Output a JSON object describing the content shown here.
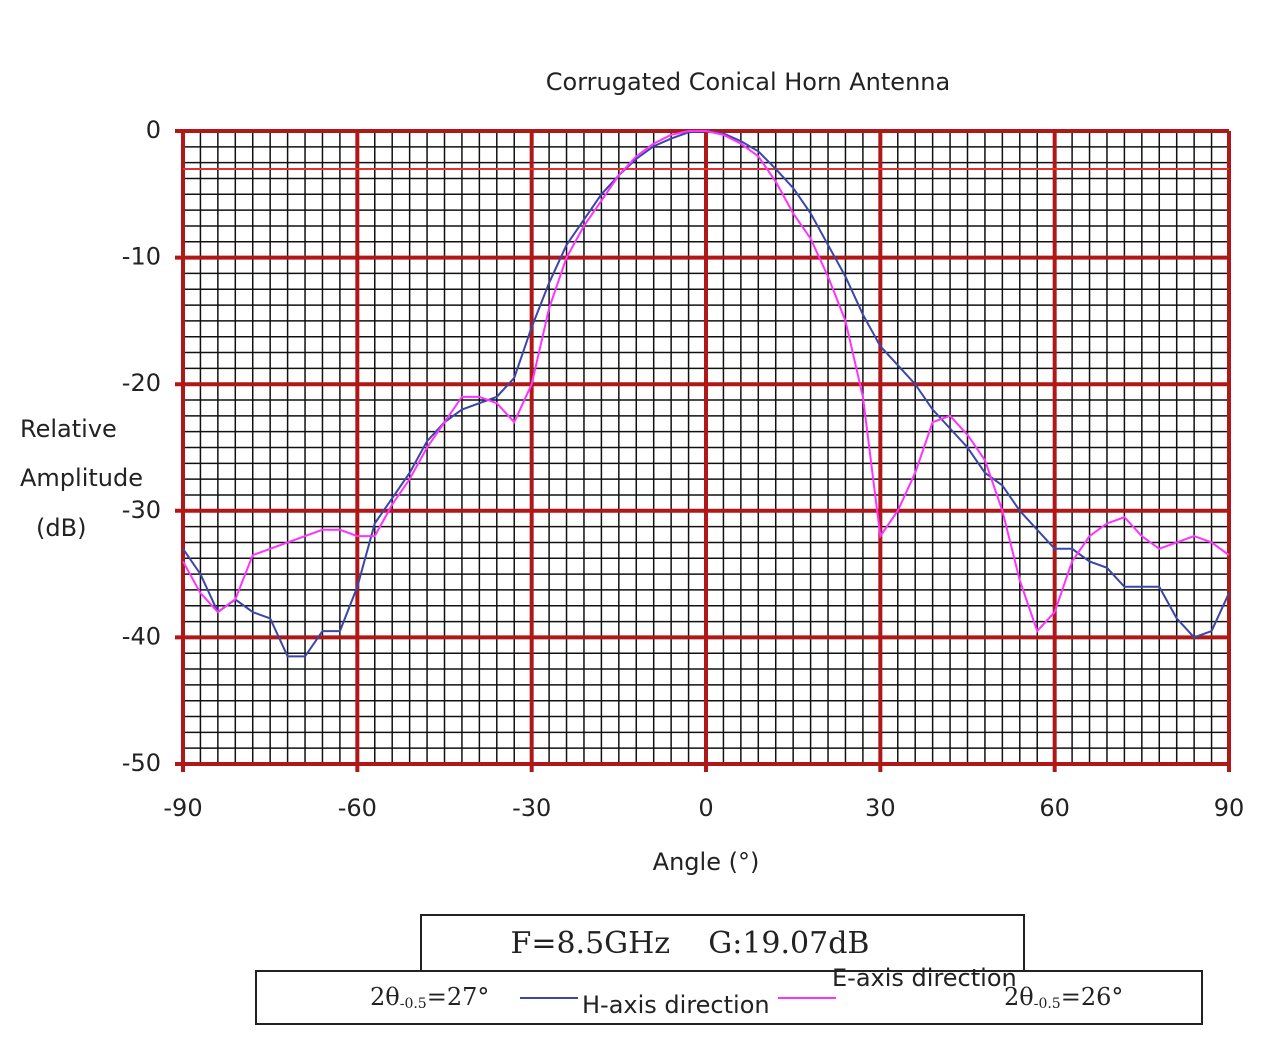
{
  "chart_data": {
    "type": "line",
    "title": "Corrugated Conical Horn Antenna",
    "xlabel": "Angle (°)",
    "ylabel": [
      "Relative",
      "Amplitude",
      "(dB)"
    ],
    "x": [
      -90,
      -87,
      -84,
      -81,
      -78,
      -75,
      -72,
      -69,
      -66,
      -63,
      -60,
      -57,
      -54,
      -51,
      -48,
      -45,
      -42,
      -39,
      -36,
      -33,
      -30,
      -27,
      -24,
      -21,
      -18,
      -15,
      -12,
      -9,
      -6,
      -3,
      0,
      3,
      6,
      9,
      12,
      15,
      18,
      21,
      24,
      27,
      30,
      33,
      36,
      39,
      42,
      45,
      48,
      51,
      54,
      57,
      60,
      63,
      66,
      69,
      72,
      75,
      78,
      81,
      84,
      87,
      90
    ],
    "series": [
      {
        "name": "H-axis direction",
        "color": "#3a47a8",
        "values": [
          -33,
          -35,
          -38,
          -37,
          -38,
          -38.5,
          -41.5,
          -41.5,
          -39.5,
          -39.5,
          -36,
          -31,
          -29,
          -27,
          -24.5,
          -23,
          -22,
          -21.5,
          -21,
          -19.5,
          -15.5,
          -12,
          -9,
          -7,
          -5,
          -3.5,
          -2.2,
          -1.2,
          -0.6,
          -0.1,
          0,
          -0.2,
          -0.8,
          -1.6,
          -3,
          -4.5,
          -6.5,
          -9,
          -11.5,
          -14.5,
          -17,
          -18.5,
          -20,
          -22,
          -23.5,
          -25,
          -27,
          -28,
          -30,
          -31.5,
          -33,
          -33,
          -34,
          -34.5,
          -36,
          -36,
          -36,
          -38.5,
          -40,
          -39.5,
          -36.5
        ]
      },
      {
        "name": "E-axis direction",
        "color": "#ff33ff",
        "values": [
          -34,
          -36.5,
          -38,
          -37,
          -33.5,
          -33,
          -32.5,
          -32,
          -31.5,
          -31.5,
          -32,
          -32,
          -29.5,
          -27.5,
          -25,
          -23,
          -21,
          -21,
          -21.5,
          -23,
          -20,
          -14,
          -10,
          -7.5,
          -5.5,
          -3.5,
          -2,
          -1,
          -0.3,
          0,
          0,
          -0.3,
          -1,
          -2,
          -4,
          -6.5,
          -8.5,
          -11.5,
          -15,
          -21,
          -32,
          -30,
          -27,
          -23,
          -22.5,
          -24,
          -26,
          -30,
          -35.5,
          -39.5,
          -38,
          -34,
          -32,
          -31,
          -30.5,
          -32,
          -33,
          -32.5,
          -32,
          -32.5,
          -33.5
        ]
      }
    ],
    "xlim": [
      -90,
      90
    ],
    "xticks": [
      -90,
      -60,
      -30,
      0,
      30,
      60,
      90
    ],
    "ylim": [
      -50,
      0
    ],
    "yticks": [
      0,
      -10,
      -20,
      -30,
      -40,
      -50
    ],
    "grid": true,
    "minor_grid": {
      "x_step": 3,
      "y_step": 1.25
    },
    "reference_line": -3,
    "info": "F=8.5GHz    G:19.07dB",
    "beamwidths": [
      {
        "prefix": "2θ",
        "subscript": "-0.5",
        "suffix": "=27°"
      },
      {
        "prefix": "2θ",
        "subscript": "-0.5",
        "suffix": "=26°"
      }
    ]
  }
}
